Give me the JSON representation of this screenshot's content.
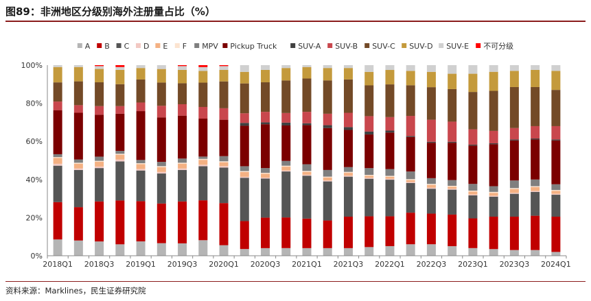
{
  "header": {
    "title": "图89：非洲地区分级别海外注册量占比（%）"
  },
  "footer": {
    "source": "资料来源：Marklines，民生证券研究院"
  },
  "colors": {
    "A": "#b5b5b5",
    "B": "#c00000",
    "C": "#555555",
    "D": "#f2c9c3",
    "E": "#f4b183",
    "F": "#fce4d0",
    "MPV": "#7f7f7f",
    "Pickup Truck": "#7b0000",
    "SUV-A": "#404040",
    "SUV-B": "#c9474d",
    "SUV-C": "#734a27",
    "SUV-D": "#c49a3c",
    "SUV-E": "#d0d0d0",
    "不可分级": "#ff0000"
  },
  "chart_data": {
    "type": "bar",
    "stacked": true,
    "title": "",
    "xlabel": "",
    "ylabel": "",
    "ylim": [
      0,
      100
    ],
    "yticks": [
      "0%",
      "20%",
      "40%",
      "60%",
      "80%",
      "100%"
    ],
    "legend_position": "top",
    "categories": [
      "2018Q1",
      "2018Q2",
      "2018Q3",
      "2018Q4",
      "2019Q1",
      "2019Q2",
      "2019Q3",
      "2019Q4",
      "2020Q1",
      "2020Q2",
      "2020Q3",
      "2020Q4",
      "2021Q1",
      "2021Q2",
      "2021Q3",
      "2021Q4",
      "2022Q1",
      "2022Q2",
      "2022Q3",
      "2022Q4",
      "2023Q1",
      "2023Q2",
      "2023Q3",
      "2023Q4",
      "2024Q1"
    ],
    "xtick_labels": [
      "2018Q1",
      "",
      "2018Q3",
      "",
      "2019Q1",
      "",
      "2019Q3",
      "",
      "2020Q1",
      "",
      "2020Q3",
      "",
      "2021Q1",
      "",
      "2021Q3",
      "",
      "2022Q1",
      "",
      "2022Q3",
      "",
      "2023Q1",
      "",
      "2023Q3",
      "",
      "2024Q1"
    ],
    "series": [
      {
        "name": "A",
        "values": [
          8.5,
          8,
          7.5,
          6,
          7.5,
          6.5,
          6.5,
          8,
          5.5,
          3.5,
          4,
          4,
          4,
          4,
          4,
          4.5,
          5,
          6,
          6,
          5,
          4,
          3.5,
          3,
          3,
          2
        ]
      },
      {
        "name": "B",
        "values": [
          19.5,
          17.5,
          21,
          23,
          21,
          20.5,
          22,
          20.5,
          22,
          14.5,
          16,
          16,
          15.5,
          14.5,
          16.5,
          16,
          15.5,
          16.5,
          16,
          16.5,
          15.5,
          17,
          17.5,
          18,
          18.5
        ]
      },
      {
        "name": "C",
        "values": [
          19,
          19.5,
          17.5,
          20.5,
          16,
          15.5,
          16.5,
          17.5,
          18.5,
          22.5,
          20.5,
          24,
          22.5,
          20.5,
          21,
          19.5,
          19,
          15.5,
          13,
          13,
          12,
          10.5,
          12,
          12.5,
          11.5
        ]
      },
      {
        "name": "D",
        "values": [
          1,
          0.8,
          0.8,
          1,
          0.8,
          0.8,
          0.8,
          0.8,
          0.8,
          0.5,
          0.5,
          0.5,
          0.5,
          0.5,
          0.5,
          0.5,
          0.5,
          0.5,
          0.5,
          0.5,
          0.5,
          0.5,
          0.5,
          0.5,
          0.5
        ]
      },
      {
        "name": "E",
        "values": [
          3,
          2.5,
          2.5,
          2.5,
          2.5,
          2.5,
          2.5,
          2.5,
          2,
          2.5,
          2,
          2,
          1.5,
          1.5,
          1.5,
          1,
          1,
          1,
          1.5,
          1,
          1.5,
          1.5,
          2,
          2,
          1.5
        ]
      },
      {
        "name": "F",
        "values": [
          0.5,
          0.5,
          0.5,
          0.5,
          0.5,
          0.5,
          0.5,
          0.5,
          0.5,
          0.5,
          0.5,
          0.5,
          0.5,
          0.5,
          0.5,
          0.5,
          0.5,
          0.5,
          0.5,
          0.5,
          0.5,
          0.5,
          0.5,
          0.5,
          0.5
        ]
      },
      {
        "name": "MPV",
        "values": [
          1.5,
          1.7,
          2.2,
          1.5,
          1.7,
          2.2,
          2.2,
          1.2,
          2.7,
          2.5,
          2.5,
          2.5,
          3.5,
          3.5,
          2.5,
          3.5,
          3.5,
          4,
          3,
          3,
          3.5,
          3,
          4,
          3.5,
          3
        ]
      },
      {
        "name": "Pickup Truck",
        "values": [
          23,
          24.5,
          22,
          19.5,
          25.5,
          23,
          22.5,
          19.5,
          19,
          21,
          23,
          18.5,
          20.5,
          22,
          19.5,
          17.5,
          19,
          18,
          18.5,
          19.5,
          20,
          22,
          21,
          21,
          23
        ]
      },
      {
        "name": "SUV-A",
        "values": [
          0,
          0,
          0,
          0,
          0,
          0,
          0,
          0,
          0,
          1.5,
          1,
          1.5,
          1,
          1.5,
          1.5,
          1.5,
          1,
          0.5,
          0.5,
          0.5,
          0.5,
          0.5,
          0.5,
          0.5,
          0.5
        ]
      },
      {
        "name": "SUV-B",
        "values": [
          4.5,
          4,
          4.5,
          4,
          4.5,
          6,
          6,
          6,
          6,
          5,
          5.5,
          5,
          6,
          6,
          7.5,
          8,
          7,
          10.5,
          11.5,
          10.5,
          8,
          6.5,
          6,
          6.5,
          7
        ]
      },
      {
        "name": "SUV-C",
        "values": [
          10,
          12.5,
          12.5,
          11.5,
          12,
          12,
          11,
          12.5,
          14,
          15.5,
          15.5,
          17,
          17.5,
          17.5,
          17.5,
          16,
          17,
          16,
          17,
          17,
          19.5,
          21,
          21.5,
          20.5,
          19
        ]
      },
      {
        "name": "SUV-D",
        "values": [
          8,
          7.5,
          7,
          7.5,
          6,
          7,
          7,
          6,
          6,
          6,
          6.5,
          6.5,
          6,
          6.5,
          6,
          7,
          7.5,
          7.5,
          8,
          8,
          9.5,
          10,
          8.5,
          9,
          10
        ]
      },
      {
        "name": "SUV-E",
        "values": [
          1,
          1,
          1.5,
          1.5,
          1.5,
          2,
          2,
          2,
          2,
          3.5,
          2.5,
          1.5,
          1,
          1.5,
          1.5,
          3.5,
          2.5,
          3,
          3.5,
          4.5,
          4.5,
          3.5,
          3,
          2.5,
          3
        ]
      },
      {
        "name": "不可分级",
        "values": [
          0,
          0,
          0.5,
          1,
          0,
          0,
          0.5,
          1,
          0.5,
          0,
          0,
          0,
          0,
          0,
          0,
          0,
          0,
          0,
          0,
          0,
          0,
          0,
          0,
          0,
          0
        ]
      }
    ]
  }
}
